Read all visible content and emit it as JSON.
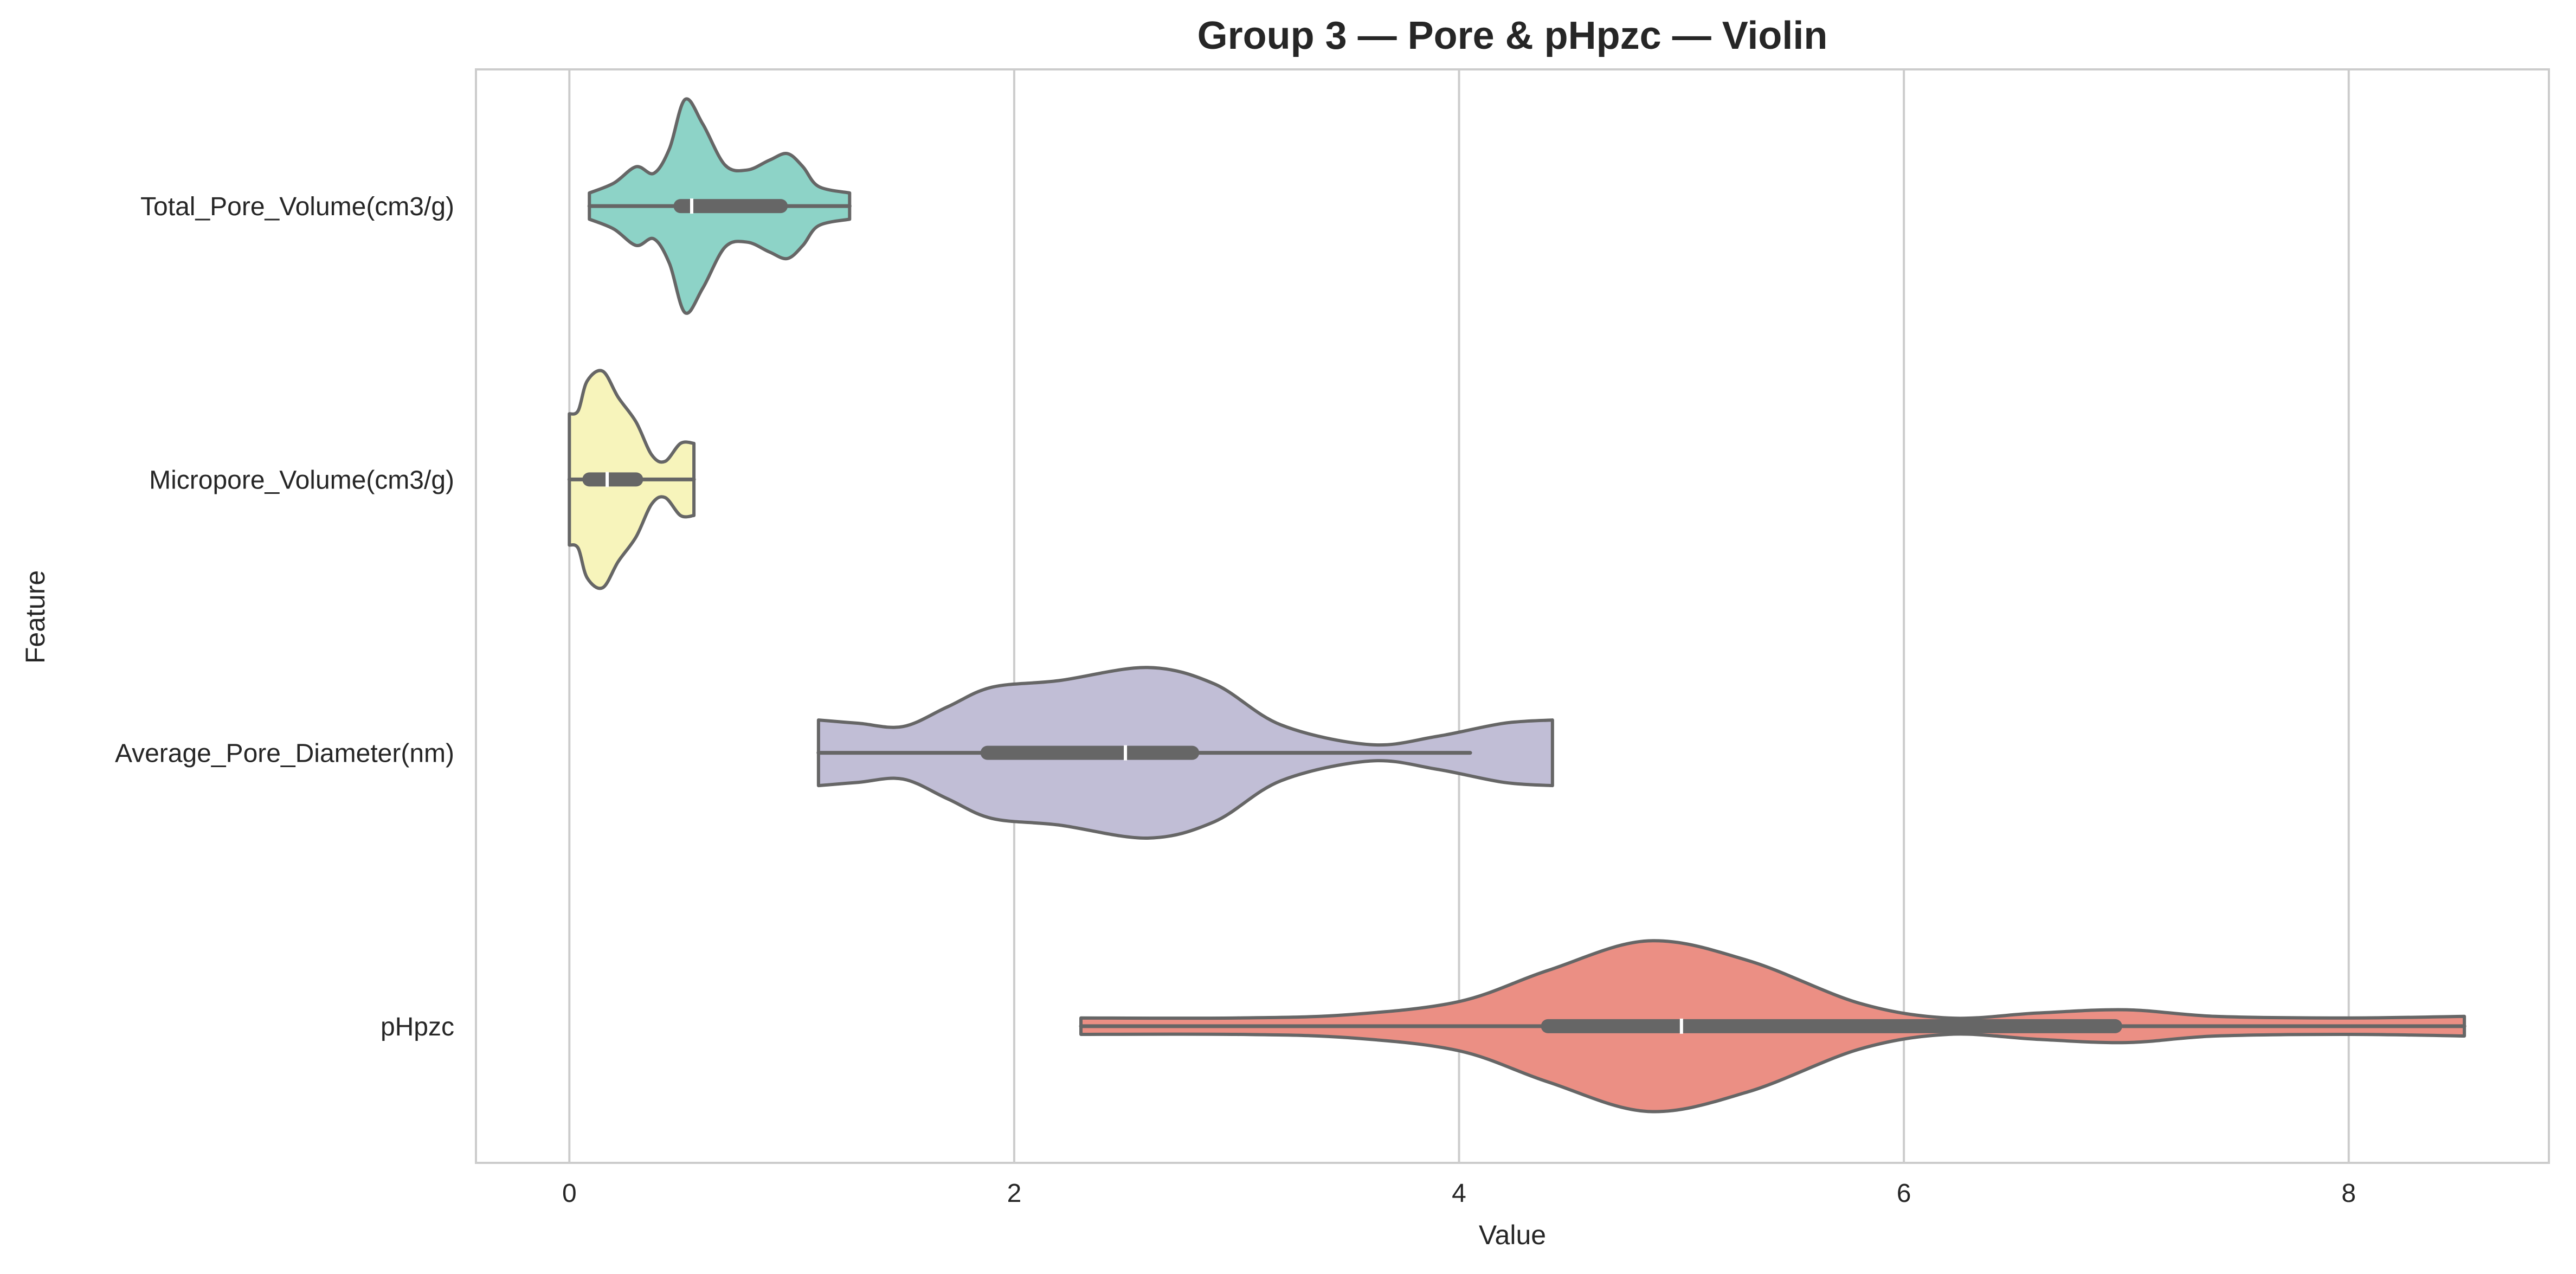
{
  "chart_data": {
    "type": "violin",
    "title": "Group 3 — Pore & pHpzc — Violin",
    "xlabel": "Value",
    "ylabel": "Feature",
    "xlim": [
      -0.42,
      8.9
    ],
    "xticks": [
      0,
      2,
      4,
      6,
      8
    ],
    "grid": "vertical",
    "categories": [
      "Total_Pore_Volume(cm3/g)",
      "Micropore_Volume(cm3/g)",
      "Average_Pore_Diameter(nm)",
      "pHpzc"
    ],
    "series": [
      {
        "category": "Total_Pore_Volume(cm3/g)",
        "color": "#8dd3c7",
        "min": 0.09,
        "q1": 0.5,
        "median": 0.55,
        "q3": 0.95,
        "max": 1.26,
        "density": [
          [
            0.09,
            0.08
          ],
          [
            0.2,
            0.14
          ],
          [
            0.3,
            0.24
          ],
          [
            0.38,
            0.2
          ],
          [
            0.45,
            0.35
          ],
          [
            0.52,
            0.65
          ],
          [
            0.6,
            0.5
          ],
          [
            0.7,
            0.25
          ],
          [
            0.8,
            0.22
          ],
          [
            0.9,
            0.28
          ],
          [
            0.98,
            0.32
          ],
          [
            1.05,
            0.24
          ],
          [
            1.12,
            0.12
          ],
          [
            1.26,
            0.08
          ]
        ]
      },
      {
        "category": "Micropore_Volume(cm3/g)",
        "color": "#f7f4bb",
        "min": 0.0,
        "q1": 0.09,
        "median": 0.17,
        "q3": 0.3,
        "max": 0.56,
        "density": [
          [
            0.0,
            0.4
          ],
          [
            0.04,
            0.42
          ],
          [
            0.08,
            0.6
          ],
          [
            0.15,
            0.66
          ],
          [
            0.22,
            0.5
          ],
          [
            0.3,
            0.35
          ],
          [
            0.37,
            0.15
          ],
          [
            0.43,
            0.11
          ],
          [
            0.5,
            0.22
          ],
          [
            0.56,
            0.22
          ]
        ]
      },
      {
        "category": "Average_Pore_Diameter(nm)",
        "color": "#c1bed6",
        "min": 1.12,
        "q1": 1.88,
        "median": 2.5,
        "q3": 2.8,
        "max": 4.05,
        "outer_max": 4.42,
        "density": [
          [
            1.12,
            0.2
          ],
          [
            1.3,
            0.18
          ],
          [
            1.5,
            0.16
          ],
          [
            1.7,
            0.28
          ],
          [
            1.9,
            0.4
          ],
          [
            2.2,
            0.44
          ],
          [
            2.6,
            0.52
          ],
          [
            2.9,
            0.42
          ],
          [
            3.2,
            0.17
          ],
          [
            3.6,
            0.05
          ],
          [
            3.9,
            0.1
          ],
          [
            4.2,
            0.18
          ],
          [
            4.42,
            0.2
          ]
        ]
      },
      {
        "category": "pHpzc",
        "color": "#eb8f84",
        "min": 2.3,
        "q1": 4.4,
        "median": 5.0,
        "q3": 6.95,
        "max": 8.52,
        "density": [
          [
            2.3,
            0.05
          ],
          [
            3.0,
            0.05
          ],
          [
            3.5,
            0.07
          ],
          [
            4.0,
            0.15
          ],
          [
            4.4,
            0.34
          ],
          [
            4.85,
            0.52
          ],
          [
            5.3,
            0.4
          ],
          [
            5.8,
            0.14
          ],
          [
            6.2,
            0.05
          ],
          [
            6.6,
            0.08
          ],
          [
            7.0,
            0.1
          ],
          [
            7.4,
            0.06
          ],
          [
            8.0,
            0.05
          ],
          [
            8.52,
            0.06
          ]
        ]
      }
    ]
  }
}
